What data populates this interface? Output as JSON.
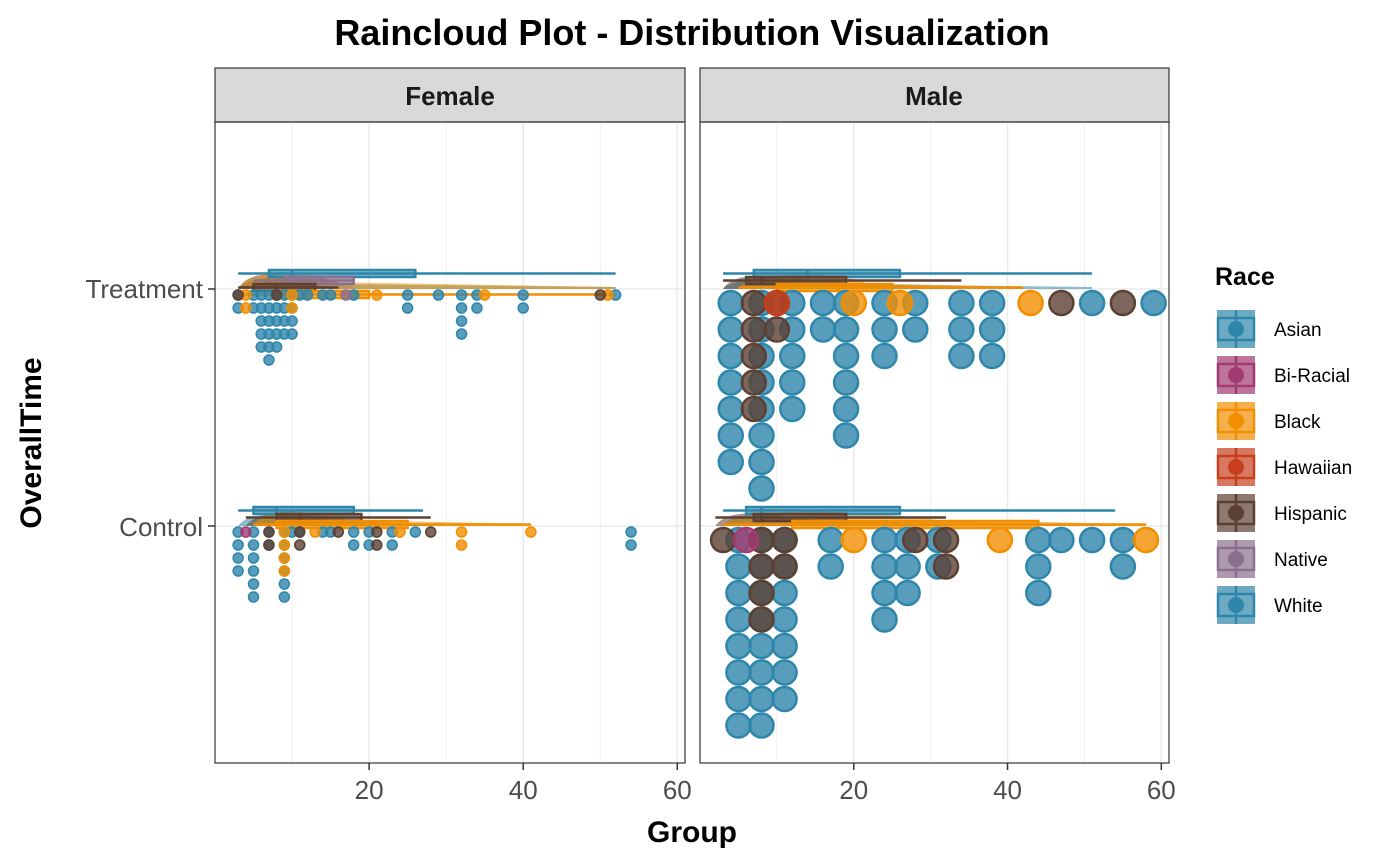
{
  "chart_data": {
    "type": "raincloud",
    "title": "Raincloud Plot - Distribution Visualization",
    "xlabel": "Group",
    "ylabel": "OverallTime",
    "xlim": [
      0,
      61
    ],
    "xticks": [
      20,
      40,
      60
    ],
    "y_categories": [
      "Control",
      "Treatment"
    ],
    "grid": true,
    "facets": [
      "Female",
      "Male"
    ],
    "legend": {
      "title": "Race",
      "position": "right",
      "entries": [
        {
          "name": "Asian",
          "color": "#2E86AB"
        },
        {
          "name": "Bi-Racial",
          "color": "#A23B72"
        },
        {
          "name": "Black",
          "color": "#F18F01"
        },
        {
          "name": "Hawaiian",
          "color": "#C73E1D"
        },
        {
          "name": "Hispanic",
          "color": "#5C4033"
        },
        {
          "name": "Native",
          "color": "#8B6F8E"
        },
        {
          "name": "White",
          "color": "#2E86AB"
        }
      ]
    },
    "panels": [
      {
        "facet": "Female",
        "dot_scale": "small",
        "groups": [
          {
            "y": "Treatment",
            "boxes": [
              {
                "race": "White",
                "min": 3,
                "q1": 7,
                "median": 10,
                "q3": 26,
                "max": 52
              },
              {
                "race": "Native",
                "min": 5,
                "q1": 9,
                "median": 14,
                "q3": 18,
                "max": 18
              },
              {
                "race": "Hispanic",
                "min": 3,
                "q1": 5,
                "median": 8,
                "q3": 13,
                "max": 16
              },
              {
                "race": "Black",
                "min": 3,
                "q1": 8,
                "median": 12,
                "q3": 20,
                "max": 52
              }
            ],
            "points": [
              {
                "race": "White",
                "x": [
                  3,
                  5,
                  6,
                  7,
                  8,
                  9,
                  10,
                  11,
                  12,
                  14,
                  15,
                  18,
                  25,
                  29,
                  32,
                  34,
                  40,
                  52
                ],
                "counts": [
                  2,
                  2,
                  5,
                  6,
                  5,
                  4,
                  4,
                  1,
                  1,
                  1,
                  1,
                  1,
                  2,
                  1,
                  4,
                  2,
                  2,
                  1
                ]
              },
              {
                "race": "Black",
                "x": [
                  4,
                  10,
                  21,
                  35,
                  51
                ],
                "counts": [
                  2,
                  2,
                  1,
                  1,
                  1
                ]
              },
              {
                "race": "Hispanic",
                "x": [
                  3,
                  8,
                  50
                ],
                "counts": [
                  1,
                  1,
                  1
                ]
              },
              {
                "race": "Native",
                "x": [
                  17
                ],
                "counts": [
                  1
                ]
              }
            ]
          },
          {
            "y": "Control",
            "boxes": [
              {
                "race": "White",
                "min": 3,
                "q1": 5,
                "median": 8,
                "q3": 18,
                "max": 27
              },
              {
                "race": "Hispanic",
                "min": 4,
                "q1": 8,
                "median": 11,
                "q3": 19,
                "max": 28
              },
              {
                "race": "Black",
                "min": 5,
                "q1": 8,
                "median": 10,
                "q3": 25,
                "max": 41
              }
            ],
            "points": [
              {
                "race": "White",
                "x": [
                  3,
                  5,
                  7,
                  9,
                  10,
                  11,
                  14,
                  15,
                  18,
                  20,
                  23,
                  26,
                  54
                ],
                "counts": [
                  4,
                  6,
                  2,
                  6,
                  1,
                  1,
                  1,
                  1,
                  2,
                  2,
                  2,
                  1,
                  2
                ]
              },
              {
                "race": "Black",
                "x": [
                  9,
                  13,
                  24,
                  32,
                  41
                ],
                "counts": [
                  4,
                  1,
                  1,
                  2,
                  1
                ]
              },
              {
                "race": "Hispanic",
                "x": [
                  7,
                  11,
                  16,
                  21,
                  28
                ],
                "counts": [
                  2,
                  2,
                  1,
                  2,
                  1
                ]
              },
              {
                "race": "Bi-Racial",
                "x": [
                  4
                ],
                "counts": [
                  1
                ]
              }
            ]
          }
        ]
      },
      {
        "facet": "Male",
        "dot_scale": "large",
        "groups": [
          {
            "y": "Treatment",
            "boxes": [
              {
                "race": "White",
                "min": 3,
                "q1": 7,
                "median": 14,
                "q3": 26,
                "max": 51
              },
              {
                "race": "Hispanic",
                "min": 3,
                "q1": 6,
                "median": 8,
                "q3": 19,
                "max": 34
              },
              {
                "race": "Black",
                "min": 5,
                "q1": 10,
                "median": 18,
                "q3": 25,
                "max": 42
              }
            ],
            "points": [
              {
                "race": "White",
                "x": [
                  4,
                  8,
                  12,
                  16,
                  19,
                  24,
                  28,
                  34,
                  38,
                  51,
                  59
                ],
                "counts": [
                  7,
                  8,
                  5,
                  2,
                  6,
                  3,
                  2,
                  3,
                  3,
                  1,
                  1
                ]
              },
              {
                "race": "Hispanic",
                "x": [
                  7,
                  10,
                  47,
                  55
                ],
                "counts": [
                  5,
                  2,
                  1,
                  1
                ]
              },
              {
                "race": "Black",
                "x": [
                  20,
                  26,
                  43
                ],
                "counts": [
                  1,
                  1,
                  1
                ]
              },
              {
                "race": "Hawaiian",
                "x": [
                  10
                ],
                "counts": [
                  1
                ]
              }
            ]
          },
          {
            "y": "Control",
            "boxes": [
              {
                "race": "White",
                "min": 3,
                "q1": 6,
                "median": 8,
                "q3": 26,
                "max": 54
              },
              {
                "race": "Hispanic",
                "min": 2,
                "q1": 7,
                "median": 8,
                "q3": 19,
                "max": 32
              },
              {
                "race": "Black",
                "min": 3,
                "q1": 12,
                "median": 18,
                "q3": 44,
                "max": 58
              }
            ],
            "points": [
              {
                "race": "White",
                "x": [
                  5,
                  8,
                  11,
                  17,
                  24,
                  27,
                  31,
                  44,
                  47,
                  51,
                  55
                ],
                "counts": [
                  8,
                  8,
                  7,
                  2,
                  4,
                  3,
                  2,
                  3,
                  1,
                  1,
                  2
                ]
              },
              {
                "race": "Hispanic",
                "x": [
                  3,
                  8,
                  11,
                  28,
                  32
                ],
                "counts": [
                  1,
                  4,
                  2,
                  1,
                  2
                ]
              },
              {
                "race": "Black",
                "x": [
                  20,
                  39,
                  58
                ],
                "counts": [
                  1,
                  1,
                  1
                ]
              },
              {
                "race": "Bi-Racial",
                "x": [
                  6
                ],
                "counts": [
                  1
                ]
              }
            ]
          }
        ]
      }
    ]
  }
}
